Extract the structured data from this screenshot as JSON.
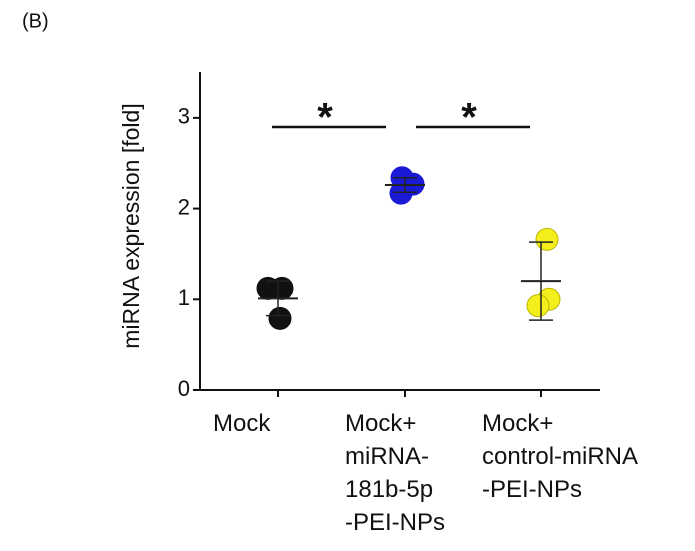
{
  "chart_data": {
    "type": "dot",
    "panel_label": "(B)",
    "y_label": "miRNA expression [fold]",
    "categories": [
      "Mock",
      "Mock+\nmiRNA-\n181b-5p\n-PEI-NPs",
      "Mock+\ncontrol-miRNA\n-PEI-NPs"
    ],
    "colors": [
      "#111111",
      "#1a1ad6",
      "#f4ee1c"
    ],
    "points": [
      [
        1.12,
        1.12,
        0.79
      ],
      [
        2.34,
        2.27,
        2.17
      ],
      [
        1.66,
        1.0,
        0.93
      ]
    ],
    "means": [
      1.01,
      2.26,
      1.2
    ],
    "errors": [
      0.19,
      0.08,
      0.43
    ],
    "ylim": [
      0,
      3.5
    ],
    "yticks": [
      0,
      1,
      2,
      3
    ],
    "annotations": [
      "*",
      "*"
    ]
  }
}
